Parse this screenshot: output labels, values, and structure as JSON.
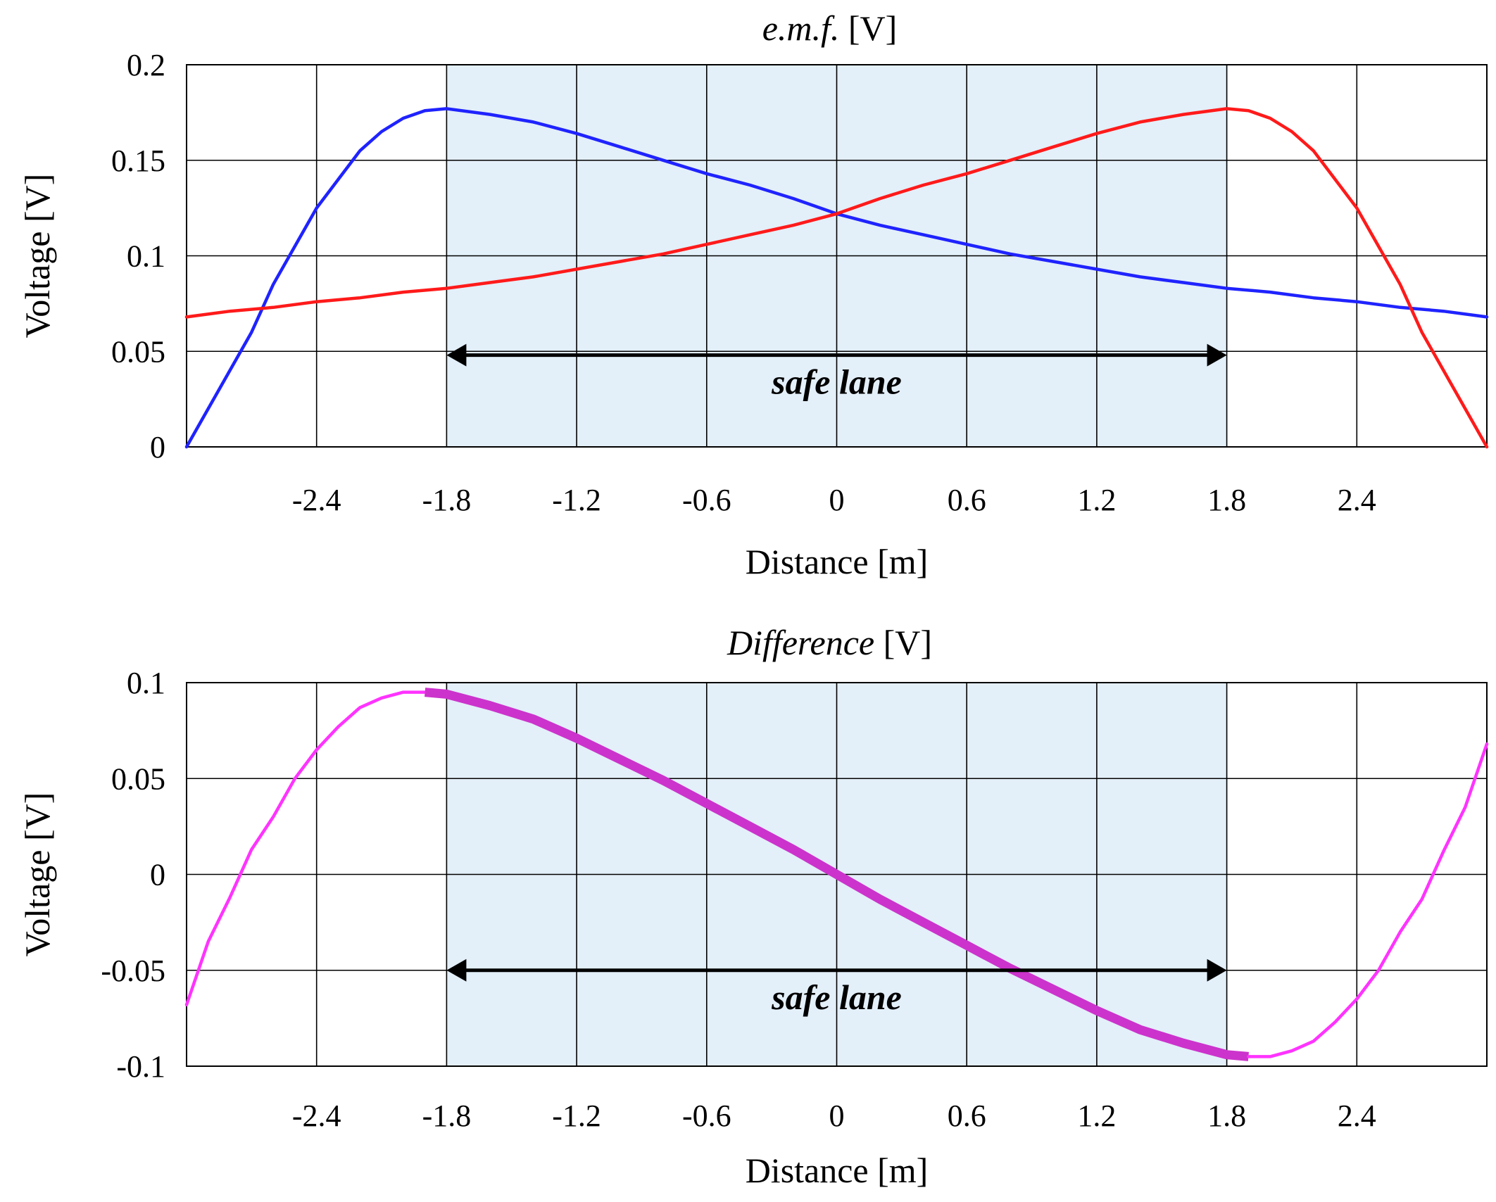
{
  "chart_data": [
    {
      "type": "line",
      "title_italic": "e.m.f.",
      "title_rest": " [V]",
      "xlabel": "Distance [m]",
      "ylabel": "Voltage [V]",
      "xlim": [
        -3.0,
        3.0
      ],
      "ylim": [
        0,
        0.2
      ],
      "xticks": [
        -2.4,
        -1.8,
        -1.2,
        -0.6,
        0,
        0.6,
        1.2,
        1.8,
        2.4
      ],
      "xtick_labels": [
        "-2.4",
        "-1.8",
        "-1.2",
        "-0.6",
        "0",
        "0.6",
        "1.2",
        "1.8",
        "2.4"
      ],
      "yticks": [
        0,
        0.05,
        0.1,
        0.15,
        0.2
      ],
      "ytick_labels": [
        "0",
        "0.05",
        "0.1",
        "0.15",
        "0.2"
      ],
      "grid": true,
      "shaded_region": {
        "x": [
          -1.8,
          1.8
        ],
        "color": "#e3eff9"
      },
      "annotation": {
        "text": "safe lane",
        "arrow_x": [
          -1.8,
          1.8
        ],
        "y": 0.048
      },
      "series": [
        {
          "name": "blue",
          "color": "#1f23ff",
          "points": [
            [
              -3.0,
              0.0
            ],
            [
              -2.85,
              0.03
            ],
            [
              -2.7,
              0.06
            ],
            [
              -2.6,
              0.085
            ],
            [
              -2.5,
              0.105
            ],
            [
              -2.4,
              0.125
            ],
            [
              -2.3,
              0.14
            ],
            [
              -2.2,
              0.155
            ],
            [
              -2.1,
              0.165
            ],
            [
              -2.0,
              0.172
            ],
            [
              -1.9,
              0.176
            ],
            [
              -1.8,
              0.177
            ],
            [
              -1.6,
              0.174
            ],
            [
              -1.4,
              0.17
            ],
            [
              -1.2,
              0.164
            ],
            [
              -1.0,
              0.157
            ],
            [
              -0.8,
              0.15
            ],
            [
              -0.6,
              0.143
            ],
            [
              -0.4,
              0.137
            ],
            [
              -0.2,
              0.13
            ],
            [
              0.0,
              0.122
            ],
            [
              0.2,
              0.116
            ],
            [
              0.4,
              0.111
            ],
            [
              0.6,
              0.106
            ],
            [
              0.8,
              0.101
            ],
            [
              1.0,
              0.097
            ],
            [
              1.2,
              0.093
            ],
            [
              1.4,
              0.089
            ],
            [
              1.6,
              0.086
            ],
            [
              1.8,
              0.083
            ],
            [
              2.0,
              0.081
            ],
            [
              2.2,
              0.078
            ],
            [
              2.4,
              0.076
            ],
            [
              2.6,
              0.073
            ],
            [
              2.8,
              0.071
            ],
            [
              3.0,
              0.068
            ]
          ]
        },
        {
          "name": "red",
          "color": "#ff1a1a",
          "points": [
            [
              -3.0,
              0.068
            ],
            [
              -2.8,
              0.071
            ],
            [
              -2.6,
              0.073
            ],
            [
              -2.4,
              0.076
            ],
            [
              -2.2,
              0.078
            ],
            [
              -2.0,
              0.081
            ],
            [
              -1.8,
              0.083
            ],
            [
              -1.6,
              0.086
            ],
            [
              -1.4,
              0.089
            ],
            [
              -1.2,
              0.093
            ],
            [
              -1.0,
              0.097
            ],
            [
              -0.8,
              0.101
            ],
            [
              -0.6,
              0.106
            ],
            [
              -0.4,
              0.111
            ],
            [
              -0.2,
              0.116
            ],
            [
              0.0,
              0.122
            ],
            [
              0.2,
              0.13
            ],
            [
              0.4,
              0.137
            ],
            [
              0.6,
              0.143
            ],
            [
              0.8,
              0.15
            ],
            [
              1.0,
              0.157
            ],
            [
              1.2,
              0.164
            ],
            [
              1.4,
              0.17
            ],
            [
              1.6,
              0.174
            ],
            [
              1.8,
              0.177
            ],
            [
              1.9,
              0.176
            ],
            [
              2.0,
              0.172
            ],
            [
              2.1,
              0.165
            ],
            [
              2.2,
              0.155
            ],
            [
              2.3,
              0.14
            ],
            [
              2.4,
              0.125
            ],
            [
              2.5,
              0.105
            ],
            [
              2.6,
              0.085
            ],
            [
              2.7,
              0.06
            ],
            [
              2.85,
              0.03
            ],
            [
              3.0,
              0.0
            ]
          ]
        }
      ]
    },
    {
      "type": "line",
      "title_italic": "Difference",
      "title_rest": " [V]",
      "xlabel": "Distance [m]",
      "ylabel": "Voltage [V]",
      "xlim": [
        -3.0,
        3.0
      ],
      "ylim": [
        -0.1,
        0.1
      ],
      "xticks": [
        -2.4,
        -1.8,
        -1.2,
        -0.6,
        0,
        0.6,
        1.2,
        1.8,
        2.4
      ],
      "xtick_labels": [
        "-2.4",
        "-1.8",
        "-1.2",
        "-0.6",
        "0",
        "0.6",
        "1.2",
        "1.8",
        "2.4"
      ],
      "yticks": [
        0.1,
        0.05,
        0,
        -0.05,
        -0.1
      ],
      "ytick_labels": [
        "0.1",
        "0.05",
        "0",
        "-0.05",
        "-0.1"
      ],
      "grid": true,
      "shaded_region": {
        "x": [
          -1.8,
          1.8
        ],
        "color": "#e3eff9"
      },
      "annotation": {
        "text": "safe lane",
        "arrow_x": [
          -1.8,
          1.8
        ],
        "y": -0.05
      },
      "series": [
        {
          "name": "difference",
          "color": "#ff33ff",
          "points": [
            [
              -3.0,
              -0.068
            ],
            [
              -2.9,
              -0.035
            ],
            [
              -2.8,
              -0.012
            ],
            [
              -2.7,
              0.013
            ],
            [
              -2.6,
              0.03
            ],
            [
              -2.5,
              0.05
            ],
            [
              -2.4,
              0.065
            ],
            [
              -2.3,
              0.077
            ],
            [
              -2.2,
              0.087
            ],
            [
              -2.1,
              0.092
            ],
            [
              -2.0,
              0.095
            ],
            [
              -1.9,
              0.094
            ],
            [
              -3.0,
              -0.068
            ]
          ]
        },
        {
          "name": "difference-left-tail",
          "color": "#ff33ff",
          "points": [
            [
              -3.0,
              -0.068
            ],
            [
              -2.9,
              -0.035
            ],
            [
              -2.8,
              -0.012
            ],
            [
              -2.7,
              0.013
            ],
            [
              -2.6,
              0.03
            ],
            [
              -2.5,
              0.05
            ],
            [
              -2.4,
              0.065
            ],
            [
              -2.3,
              0.077
            ],
            [
              -2.2,
              0.087
            ],
            [
              -2.1,
              0.092
            ],
            [
              -2.0,
              0.095
            ],
            [
              -1.9,
              0.095
            ]
          ]
        },
        {
          "name": "difference-safe-lane",
          "color": "#cc33cc",
          "bold": true,
          "points": [
            [
              -1.9,
              0.095
            ],
            [
              -1.8,
              0.094
            ],
            [
              -1.6,
              0.088
            ],
            [
              -1.4,
              0.081
            ],
            [
              -1.2,
              0.071
            ],
            [
              -1.0,
              0.06
            ],
            [
              -0.8,
              0.049
            ],
            [
              -0.6,
              0.037
            ],
            [
              -0.4,
              0.025
            ],
            [
              -0.2,
              0.013
            ],
            [
              0.0,
              0.0
            ],
            [
              0.2,
              -0.013
            ],
            [
              0.4,
              -0.025
            ],
            [
              0.6,
              -0.037
            ],
            [
              0.8,
              -0.049
            ],
            [
              1.0,
              -0.06
            ],
            [
              1.2,
              -0.071
            ],
            [
              1.4,
              -0.081
            ],
            [
              1.6,
              -0.088
            ],
            [
              1.8,
              -0.094
            ],
            [
              1.9,
              -0.095
            ]
          ]
        },
        {
          "name": "difference-right-tail",
          "color": "#ff33ff",
          "points": [
            [
              1.9,
              -0.095
            ],
            [
              2.0,
              -0.095
            ],
            [
              2.1,
              -0.092
            ],
            [
              2.2,
              -0.087
            ],
            [
              2.3,
              -0.077
            ],
            [
              2.4,
              -0.065
            ],
            [
              2.5,
              -0.05
            ],
            [
              2.6,
              -0.03
            ],
            [
              2.7,
              -0.013
            ],
            [
              2.8,
              0.012
            ],
            [
              2.9,
              0.035
            ],
            [
              3.0,
              0.068
            ]
          ]
        }
      ]
    }
  ]
}
